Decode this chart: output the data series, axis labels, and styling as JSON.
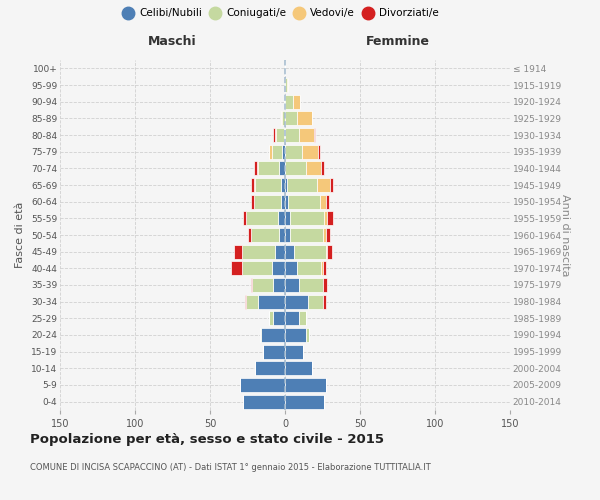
{
  "age_groups": [
    "0-4",
    "5-9",
    "10-14",
    "15-19",
    "20-24",
    "25-29",
    "30-34",
    "35-39",
    "40-44",
    "45-49",
    "50-54",
    "55-59",
    "60-64",
    "65-69",
    "70-74",
    "75-79",
    "80-84",
    "85-89",
    "90-94",
    "95-99",
    "100+"
  ],
  "birth_years": [
    "2010-2014",
    "2005-2009",
    "2000-2004",
    "1995-1999",
    "1990-1994",
    "1985-1989",
    "1980-1984",
    "1975-1979",
    "1970-1974",
    "1965-1969",
    "1960-1964",
    "1955-1959",
    "1950-1954",
    "1945-1949",
    "1940-1944",
    "1935-1939",
    "1930-1934",
    "1925-1929",
    "1920-1924",
    "1915-1919",
    "≤ 1914"
  ],
  "colors": {
    "celibi": "#4e7fb5",
    "coniugati": "#c5d9a0",
    "vedovi": "#f5c87a",
    "divorziati": "#d42020"
  },
  "males": {
    "celibi": [
      28,
      30,
      20,
      15,
      16,
      8,
      18,
      8,
      9,
      7,
      4,
      5,
      3,
      3,
      4,
      2,
      1,
      0,
      0,
      0,
      0
    ],
    "coniugati": [
      0,
      0,
      0,
      0,
      1,
      3,
      8,
      14,
      20,
      22,
      19,
      21,
      18,
      17,
      14,
      7,
      5,
      2,
      1,
      0,
      0
    ],
    "vedovi": [
      0,
      0,
      0,
      0,
      0,
      0,
      0,
      0,
      0,
      0,
      0,
      0,
      0,
      1,
      1,
      2,
      1,
      1,
      0,
      0,
      0
    ],
    "divorziati": [
      0,
      0,
      0,
      0,
      0,
      0,
      1,
      1,
      7,
      5,
      2,
      2,
      2,
      2,
      2,
      0,
      1,
      0,
      0,
      0,
      0
    ]
  },
  "females": {
    "celibi": [
      26,
      27,
      18,
      12,
      14,
      9,
      15,
      9,
      8,
      6,
      3,
      3,
      2,
      1,
      0,
      0,
      0,
      0,
      0,
      0,
      0
    ],
    "coniugati": [
      0,
      0,
      0,
      0,
      2,
      5,
      10,
      16,
      16,
      21,
      22,
      23,
      21,
      20,
      14,
      11,
      9,
      8,
      5,
      1,
      0
    ],
    "vedovi": [
      0,
      0,
      0,
      0,
      0,
      0,
      0,
      0,
      1,
      1,
      2,
      2,
      4,
      9,
      10,
      11,
      10,
      10,
      5,
      1,
      0
    ],
    "divorziati": [
      0,
      0,
      0,
      0,
      0,
      0,
      2,
      3,
      2,
      3,
      3,
      4,
      2,
      2,
      2,
      1,
      1,
      0,
      0,
      0,
      0
    ]
  },
  "title": "Popolazione per età, sesso e stato civile - 2015",
  "subtitle": "COMUNE DI INCISA SCAPACCINO (AT) - Dati ISTAT 1° gennaio 2015 - Elaborazione TUTTITALIA.IT",
  "xlabel_left": "Maschi",
  "xlabel_right": "Femmine",
  "ylabel_left": "Fasce di età",
  "ylabel_right": "Anni di nascita",
  "xlim": 150,
  "legend_labels": [
    "Celibi/Nubili",
    "Coniugati/e",
    "Vedovi/e",
    "Divorziati/e"
  ],
  "bg_color": "#f5f5f5",
  "bar_edge_color": "white",
  "grid_color": "#cccccc"
}
